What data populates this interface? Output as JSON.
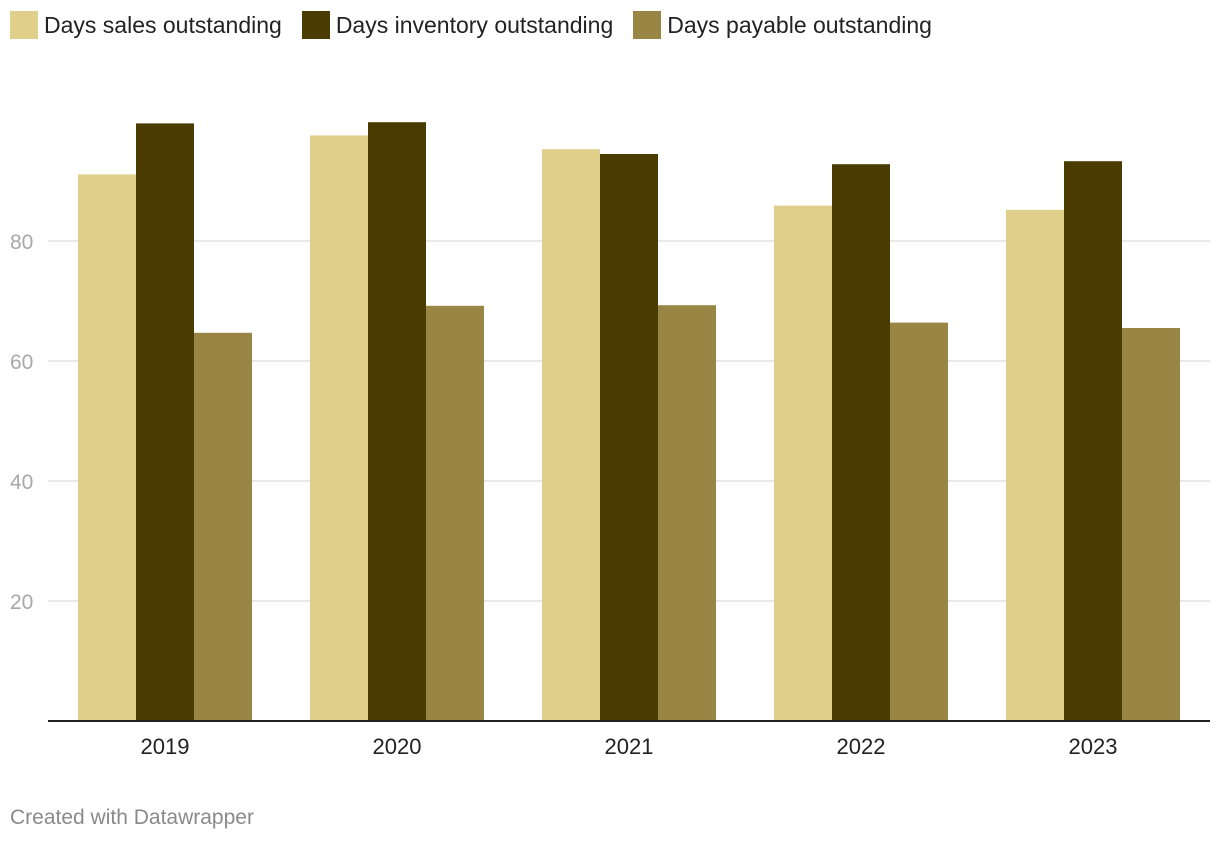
{
  "chart_data": {
    "type": "bar",
    "categories": [
      "2019",
      "2020",
      "2021",
      "2022",
      "2023"
    ],
    "series": [
      {
        "name": "Days sales outstanding",
        "color": "#dfcf8b",
        "values": [
          91.1,
          97.6,
          95.3,
          85.9,
          85.2
        ]
      },
      {
        "name": "Days inventory outstanding",
        "color": "#4a3c00",
        "values": [
          99.6,
          99.8,
          94.5,
          92.8,
          93.3
        ]
      },
      {
        "name": "Days payable outstanding",
        "color": "#998644",
        "values": [
          64.7,
          69.2,
          69.3,
          66.4,
          65.5
        ]
      }
    ],
    "yticks": [
      20,
      40,
      60,
      80
    ],
    "ylim": [
      0,
      100
    ],
    "grid": true,
    "legend_position": "top-left",
    "xlabel": "",
    "ylabel": ""
  },
  "footer": "Created with Datawrapper"
}
